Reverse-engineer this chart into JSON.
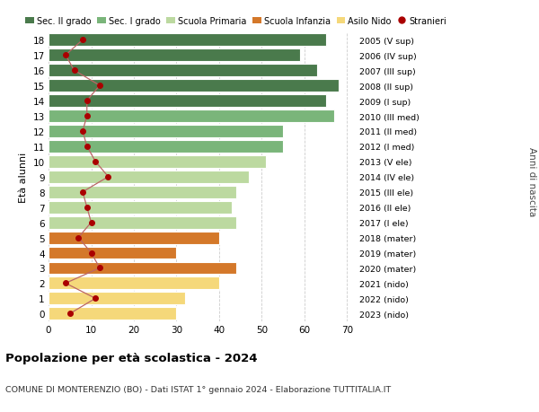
{
  "ages": [
    18,
    17,
    16,
    15,
    14,
    13,
    12,
    11,
    10,
    9,
    8,
    7,
    6,
    5,
    4,
    3,
    2,
    1,
    0
  ],
  "bar_values": [
    65,
    59,
    63,
    68,
    65,
    67,
    55,
    55,
    51,
    47,
    44,
    43,
    44,
    40,
    30,
    44,
    40,
    32,
    30
  ],
  "stranieri": [
    8,
    4,
    6,
    12,
    9,
    9,
    8,
    9,
    11,
    14,
    8,
    9,
    10,
    7,
    10,
    12,
    4,
    11,
    5
  ],
  "right_labels": [
    "2005 (V sup)",
    "2006 (IV sup)",
    "2007 (III sup)",
    "2008 (II sup)",
    "2009 (I sup)",
    "2010 (III med)",
    "2011 (II med)",
    "2012 (I med)",
    "2013 (V ele)",
    "2014 (IV ele)",
    "2015 (III ele)",
    "2016 (II ele)",
    "2017 (I ele)",
    "2018 (mater)",
    "2019 (mater)",
    "2020 (mater)",
    "2021 (nido)",
    "2022 (nido)",
    "2023 (nido)"
  ],
  "bar_colors_by_age": {
    "18": "#4a7a4c",
    "17": "#4a7a4c",
    "16": "#4a7a4c",
    "15": "#4a7a4c",
    "14": "#4a7a4c",
    "13": "#7ab57a",
    "12": "#7ab57a",
    "11": "#7ab57a",
    "10": "#bcd9a0",
    "9": "#bcd9a0",
    "8": "#bcd9a0",
    "7": "#bcd9a0",
    "6": "#bcd9a0",
    "5": "#d4782a",
    "4": "#d4782a",
    "3": "#d4782a",
    "2": "#f5d87a",
    "1": "#f5d87a",
    "0": "#f5d87a"
  },
  "legend_colors": {
    "Sec. II grado": "#4a7a4c",
    "Sec. I grado": "#7ab57a",
    "Scuola Primaria": "#bcd9a0",
    "Scuola Infanzia": "#d4782a",
    "Asilo Nido": "#f5d87a",
    "Stranieri": "#aa0000"
  },
  "stranieri_color": "#aa0000",
  "stranieri_line_color": "#bb6666",
  "title": "Popolazione per età scolastica - 2024",
  "subtitle": "COMUNE DI MONTERENZIO (BO) - Dati ISTAT 1° gennaio 2024 - Elaborazione TUTTITALIA.IT",
  "ylabel": "Età alunni",
  "right_ylabel": "Anni di nascita",
  "xlim": [
    0,
    72
  ],
  "xticks": [
    0,
    10,
    20,
    30,
    40,
    50,
    60,
    70
  ],
  "background_color": "#ffffff",
  "grid_color": "#cccccc"
}
